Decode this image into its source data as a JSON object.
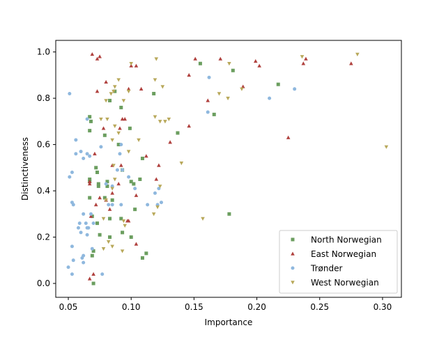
{
  "chart_data": {
    "type": "scatter",
    "title": "",
    "xlabel": "Importance",
    "ylabel": "Distinctiveness",
    "xlim": [
      0.04,
      0.315
    ],
    "ylim": [
      -0.06,
      1.05
    ],
    "xticks": [
      "0.05",
      "0.10",
      "0.15",
      "0.20",
      "0.25",
      "0.30"
    ],
    "xtick_values": [
      0.05,
      0.1,
      0.15,
      0.2,
      0.25,
      0.3
    ],
    "yticks": [
      "0.0",
      "0.2",
      "0.4",
      "0.6",
      "0.8",
      "1.0"
    ],
    "ytick_values": [
      0.0,
      0.2,
      0.4,
      0.6,
      0.8,
      1.0
    ],
    "grid": false,
    "legend_position": "lower-right",
    "series": [
      {
        "name": "North Norwegian",
        "marker": "square",
        "color": "#6b9e5f",
        "points": [
          [
            0.155,
            0.95
          ],
          [
            0.181,
            0.92
          ],
          [
            0.217,
            0.86
          ],
          [
            0.118,
            0.82
          ],
          [
            0.083,
            0.79
          ],
          [
            0.087,
            0.83
          ],
          [
            0.092,
            0.76
          ],
          [
            0.166,
            0.73
          ],
          [
            0.067,
            0.72
          ],
          [
            0.068,
            0.7
          ],
          [
            0.067,
            0.66
          ],
          [
            0.099,
            0.67
          ],
          [
            0.137,
            0.65
          ],
          [
            0.079,
            0.64
          ],
          [
            0.09,
            0.6
          ],
          [
            0.109,
            0.54
          ],
          [
            0.072,
            0.5
          ],
          [
            0.093,
            0.49
          ],
          [
            0.073,
            0.48
          ],
          [
            0.067,
            0.45
          ],
          [
            0.081,
            0.44
          ],
          [
            0.1,
            0.44
          ],
          [
            0.107,
            0.45
          ],
          [
            0.074,
            0.43
          ],
          [
            0.081,
            0.42
          ],
          [
            0.067,
            0.44
          ],
          [
            0.102,
            0.43
          ],
          [
            0.074,
            0.42
          ],
          [
            0.079,
            0.37
          ],
          [
            0.085,
            0.36
          ],
          [
            0.067,
            0.37
          ],
          [
            0.103,
            0.32
          ],
          [
            0.178,
            0.3
          ],
          [
            0.069,
            0.29
          ],
          [
            0.092,
            0.28
          ],
          [
            0.083,
            0.28
          ],
          [
            0.073,
            0.26
          ],
          [
            0.093,
            0.22
          ],
          [
            0.075,
            0.21
          ],
          [
            0.083,
            0.2
          ],
          [
            0.1,
            0.2
          ],
          [
            0.112,
            0.13
          ],
          [
            0.07,
            0.14
          ],
          [
            0.069,
            0.12
          ],
          [
            0.109,
            0.11
          ],
          [
            0.07,
            0.0
          ]
        ]
      },
      {
        "name": "East Norwegian",
        "marker": "triangle-up",
        "color": "#b0413e",
        "points": [
          [
            0.069,
            0.99
          ],
          [
            0.075,
            0.98
          ],
          [
            0.073,
            0.97
          ],
          [
            0.151,
            0.97
          ],
          [
            0.171,
            0.97
          ],
          [
            0.199,
            0.96
          ],
          [
            0.239,
            0.97
          ],
          [
            0.237,
            0.95
          ],
          [
            0.275,
            0.95
          ],
          [
            0.1,
            0.94
          ],
          [
            0.104,
            0.94
          ],
          [
            0.202,
            0.94
          ],
          [
            0.146,
            0.9
          ],
          [
            0.08,
            0.87
          ],
          [
            0.098,
            0.84
          ],
          [
            0.108,
            0.84
          ],
          [
            0.189,
            0.85
          ],
          [
            0.073,
            0.83
          ],
          [
            0.161,
            0.79
          ],
          [
            0.093,
            0.71
          ],
          [
            0.095,
            0.71
          ],
          [
            0.091,
            0.67
          ],
          [
            0.078,
            0.67
          ],
          [
            0.146,
            0.68
          ],
          [
            0.225,
            0.63
          ],
          [
            0.131,
            0.61
          ],
          [
            0.071,
            0.56
          ],
          [
            0.112,
            0.55
          ],
          [
            0.085,
            0.51
          ],
          [
            0.092,
            0.51
          ],
          [
            0.122,
            0.51
          ],
          [
            0.067,
            0.44
          ],
          [
            0.067,
            0.43
          ],
          [
            0.09,
            0.43
          ],
          [
            0.12,
            0.45
          ],
          [
            0.085,
            0.39
          ],
          [
            0.104,
            0.38
          ],
          [
            0.075,
            0.37
          ],
          [
            0.08,
            0.36
          ],
          [
            0.072,
            0.34
          ],
          [
            0.083,
            0.32
          ],
          [
            0.068,
            0.29
          ],
          [
            0.097,
            0.27
          ],
          [
            0.098,
            0.27
          ],
          [
            0.104,
            0.17
          ],
          [
            0.07,
            0.04
          ],
          [
            0.067,
            0.02
          ]
        ]
      },
      {
        "name": "Trønder",
        "marker": "circle",
        "color": "#8fb8de",
        "points": [
          [
            0.051,
            0.82
          ],
          [
            0.162,
            0.89
          ],
          [
            0.23,
            0.84
          ],
          [
            0.21,
            0.8
          ],
          [
            0.161,
            0.74
          ],
          [
            0.065,
            0.71
          ],
          [
            0.056,
            0.62
          ],
          [
            0.076,
            0.59
          ],
          [
            0.092,
            0.6
          ],
          [
            0.056,
            0.56
          ],
          [
            0.06,
            0.57
          ],
          [
            0.065,
            0.56
          ],
          [
            0.067,
            0.55
          ],
          [
            0.062,
            0.54
          ],
          [
            0.091,
            0.56
          ],
          [
            0.089,
            0.49
          ],
          [
            0.093,
            0.49
          ],
          [
            0.053,
            0.48
          ],
          [
            0.051,
            0.46
          ],
          [
            0.098,
            0.46
          ],
          [
            0.08,
            0.43
          ],
          [
            0.085,
            0.42
          ],
          [
            0.103,
            0.41
          ],
          [
            0.122,
            0.41
          ],
          [
            0.119,
            0.39
          ],
          [
            0.053,
            0.35
          ],
          [
            0.054,
            0.34
          ],
          [
            0.082,
            0.34
          ],
          [
            0.085,
            0.34
          ],
          [
            0.092,
            0.34
          ],
          [
            0.121,
            0.34
          ],
          [
            0.124,
            0.35
          ],
          [
            0.113,
            0.34
          ],
          [
            0.062,
            0.3
          ],
          [
            0.068,
            0.3
          ],
          [
            0.064,
            0.26
          ],
          [
            0.059,
            0.26
          ],
          [
            0.07,
            0.26
          ],
          [
            0.065,
            0.24
          ],
          [
            0.058,
            0.24
          ],
          [
            0.066,
            0.24
          ],
          [
            0.06,
            0.22
          ],
          [
            0.065,
            0.21
          ],
          [
            0.053,
            0.16
          ],
          [
            0.069,
            0.15
          ],
          [
            0.062,
            0.12
          ],
          [
            0.061,
            0.11
          ],
          [
            0.054,
            0.1
          ],
          [
            0.062,
            0.09
          ],
          [
            0.05,
            0.07
          ],
          [
            0.053,
            0.04
          ],
          [
            0.077,
            0.04
          ]
        ]
      },
      {
        "name": "West Norwegian",
        "marker": "triangle-down",
        "color": "#b8a85a",
        "points": [
          [
            0.28,
            0.99
          ],
          [
            0.236,
            0.98
          ],
          [
            0.12,
            0.97
          ],
          [
            0.178,
            0.95
          ],
          [
            0.1,
            0.95
          ],
          [
            0.09,
            0.88
          ],
          [
            0.119,
            0.88
          ],
          [
            0.087,
            0.85
          ],
          [
            0.086,
            0.83
          ],
          [
            0.098,
            0.83
          ],
          [
            0.125,
            0.85
          ],
          [
            0.17,
            0.82
          ],
          [
            0.084,
            0.82
          ],
          [
            0.188,
            0.84
          ],
          [
            0.177,
            0.8
          ],
          [
            0.094,
            0.79
          ],
          [
            0.08,
            0.79
          ],
          [
            0.076,
            0.71
          ],
          [
            0.081,
            0.71
          ],
          [
            0.119,
            0.72
          ],
          [
            0.123,
            0.7
          ],
          [
            0.127,
            0.7
          ],
          [
            0.13,
            0.71
          ],
          [
            0.087,
            0.68
          ],
          [
            0.09,
            0.65
          ],
          [
            0.085,
            0.62
          ],
          [
            0.106,
            0.62
          ],
          [
            0.303,
            0.59
          ],
          [
            0.098,
            0.57
          ],
          [
            0.086,
            0.51
          ],
          [
            0.14,
            0.52
          ],
          [
            0.123,
            0.42
          ],
          [
            0.087,
            0.45
          ],
          [
            0.085,
            0.41
          ],
          [
            0.08,
            0.36
          ],
          [
            0.118,
            0.3
          ],
          [
            0.157,
            0.28
          ],
          [
            0.078,
            0.28
          ],
          [
            0.094,
            0.27
          ],
          [
            0.121,
            0.33
          ],
          [
            0.095,
            0.25
          ],
          [
            0.082,
            0.18
          ],
          [
            0.085,
            0.16
          ],
          [
            0.093,
            0.14
          ],
          [
            0.078,
            0.15
          ]
        ]
      }
    ]
  }
}
